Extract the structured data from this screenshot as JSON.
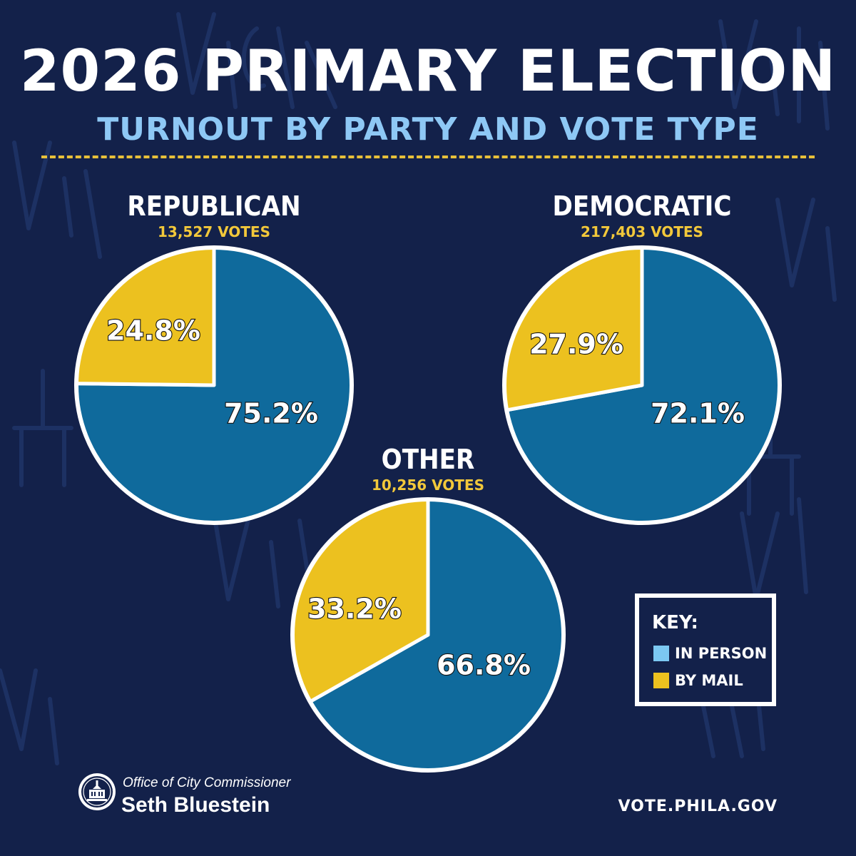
{
  "header": {
    "title": "2026 PRIMARY ELECTION",
    "subtitle": "TURNOUT BY PARTY AND VOTE TYPE"
  },
  "colors": {
    "background": "#13214a",
    "in_person": "#0f6a9c",
    "by_mail": "#ecc11f",
    "title": "#ffffff",
    "subtitle": "#8ec8f5",
    "votes": "#f2c83a",
    "key_in_person_swatch": "#7cc8f2"
  },
  "chart_data": [
    {
      "type": "pie",
      "title": "REPUBLICAN",
      "subtitle": "13,527 VOTES",
      "slices": [
        {
          "name": "IN PERSON",
          "value": 75.2,
          "label": "75.2%"
        },
        {
          "name": "BY MAIL",
          "value": 24.8,
          "label": "24.8%"
        }
      ]
    },
    {
      "type": "pie",
      "title": "DEMOCRATIC",
      "subtitle": "217,403 VOTES",
      "slices": [
        {
          "name": "IN PERSON",
          "value": 72.1,
          "label": "72.1%"
        },
        {
          "name": "BY MAIL",
          "value": 27.9,
          "label": "27.9%"
        }
      ]
    },
    {
      "type": "pie",
      "title": "OTHER",
      "subtitle": "10,256 VOTES",
      "slices": [
        {
          "name": "IN PERSON",
          "value": 66.8,
          "label": "66.8%"
        },
        {
          "name": "BY MAIL",
          "value": 33.2,
          "label": "33.2%"
        }
      ]
    }
  ],
  "legend": {
    "title": "KEY:",
    "items": [
      {
        "label": "IN PERSON",
        "color": "#7cc8f2"
      },
      {
        "label": "BY MAIL",
        "color": "#ecc11f"
      }
    ]
  },
  "footer": {
    "office": "Office of City Commissioner",
    "name": "Seth Bluestein",
    "url": "VOTE.PHILA.GOV",
    "seal_icon": "city-hall-seal-icon"
  }
}
